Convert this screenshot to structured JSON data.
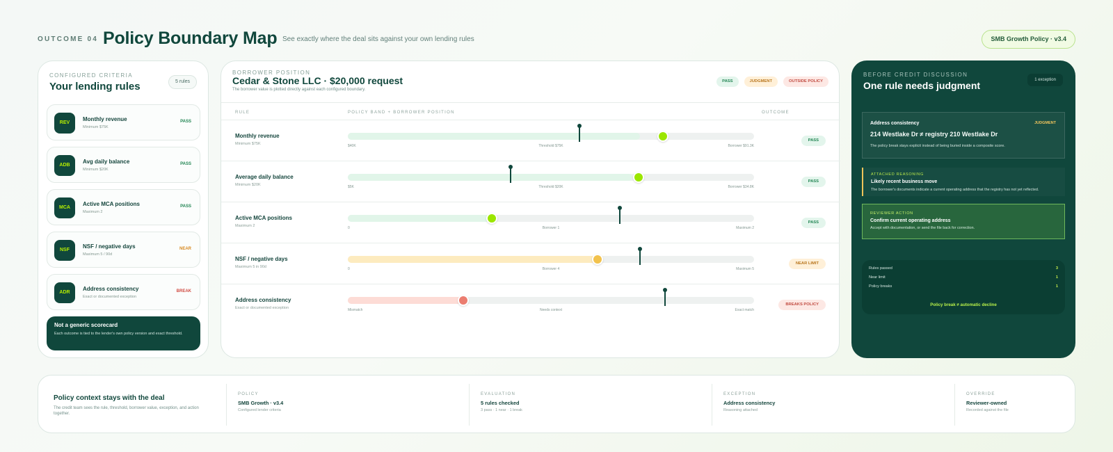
{
  "header": {
    "eyebrow": "OUTCOME 04",
    "title": "Policy Boundary Map",
    "subtitle": "See exactly where the deal sits against your own lending rules",
    "policy_pill": "SMB Growth Policy · v3.4"
  },
  "left": {
    "eyebrow": "CONFIGURED CRITERIA",
    "title": "Your lending rules",
    "count": "5 rules",
    "rules": [
      {
        "code": "REV",
        "name": "Monthly revenue",
        "sub": "Minimum $75K",
        "status": "PASS"
      },
      {
        "code": "ADB",
        "name": "Avg daily balance",
        "sub": "Minimum $20K",
        "status": "PASS"
      },
      {
        "code": "MCA",
        "name": "Active MCA positions",
        "sub": "Maximum 2",
        "status": "PASS"
      },
      {
        "code": "NSF",
        "name": "NSF / negative days",
        "sub": "Maximum 5 / 90d",
        "status": "NEAR"
      },
      {
        "code": "ADR",
        "name": "Address consistency",
        "sub": "Exact or documented exception",
        "status": "BREAK"
      }
    ],
    "scorecard": {
      "title": "Not a generic scorecard",
      "desc": "Each outcome is tied to the lender's own policy version and exact threshold."
    }
  },
  "center": {
    "eyebrow": "BORROWER POSITION",
    "title": "Cedar & Stone LLC · $20,000 request",
    "desc": "The borrower value is plotted directly against each configured boundary.",
    "legend": [
      "PASS",
      "JUDGMENT",
      "OUTSIDE POLICY"
    ],
    "headers": [
      "RULE",
      "POLICY BAND + BORROWER POSITION",
      "OUTCOME"
    ],
    "rows": [
      {
        "name": "Monthly revenue",
        "sub": "Minimum $75K",
        "left": "$40K",
        "middle": "Threshold $75K",
        "right": "Borrower $91.3K",
        "outcome": "PASS",
        "fill": 0.72,
        "dot": 0.775,
        "pin": 0.57,
        "kind": "green"
      },
      {
        "name": "Average daily balance",
        "sub": "Minimum $20K",
        "left": "$5K",
        "middle": "Threshold $20K",
        "right": "Borrower $34.8K",
        "outcome": "PASS",
        "fill": 0.7,
        "dot": 0.715,
        "pin": 0.4,
        "kind": "green"
      },
      {
        "name": "Active MCA positions",
        "sub": "Maximum 2",
        "left": "0",
        "middle": "Borrower 1",
        "right": "Maximum 2",
        "outcome": "PASS",
        "fill": 0.36,
        "dot": 0.355,
        "pin": 0.67,
        "kind": "green"
      },
      {
        "name": "NSF / negative days",
        "sub": "Maximum 5 in 90d",
        "left": "0",
        "middle": "Borrower 4",
        "right": "Maximum 5",
        "outcome": "NEAR LIMIT",
        "fill": 0.62,
        "dot": 0.615,
        "pin": 0.72,
        "kind": "amber"
      },
      {
        "name": "Address consistency",
        "sub": "Exact or documented exception",
        "left": "Mismatch",
        "middle": "Needs context",
        "right": "Exact match",
        "outcome": "BREAKS POLICY",
        "fill": 0.29,
        "dot": 0.285,
        "pin": 0.78,
        "kind": "red"
      }
    ]
  },
  "right": {
    "eyebrow": "BEFORE CREDIT DISCUSSION",
    "title": "One rule needs judgment",
    "exception": "1 exception",
    "judgment": {
      "name": "Address consistency",
      "label": "JUDGMENT",
      "address": "214 Westlake Dr ≠ registry 210 Westlake Dr",
      "note": "The policy break stays explicit instead of being buried inside a composite score."
    },
    "reasoning": {
      "label": "ATTACHED REASONING",
      "title": "Likely recent business move",
      "desc": "The borrower's documents indicate a current operating address that the registry has not yet reflected."
    },
    "action": {
      "label": "REVIEWER ACTION",
      "title": "Confirm current operating address",
      "desc": "Accept with documentation, or send the file back for correction."
    },
    "summary": [
      {
        "label": "Rules passed",
        "value": "3"
      },
      {
        "label": "Near limit",
        "value": "1"
      },
      {
        "label": "Policy breaks",
        "value": "1"
      }
    ],
    "decline": "Policy break ≠ automatic decline"
  },
  "bottom": {
    "title": "Policy context stays with the deal",
    "desc": "The credit team sees the rule, threshold, borrower value, exception, and action together.",
    "columns": [
      {
        "label": "POLICY",
        "value": "SMB Growth · v3.4",
        "sub": "Configured lender criteria"
      },
      {
        "label": "EVALUATION",
        "value": "5 rules checked",
        "sub": "3 pass · 1 near · 1 break"
      },
      {
        "label": "EXCEPTION",
        "value": "Address consistency",
        "sub": "Reasoning attached"
      },
      {
        "label": "OVERRIDE",
        "value": "Reviewer-owned",
        "sub": "Recorded against the file"
      }
    ]
  }
}
